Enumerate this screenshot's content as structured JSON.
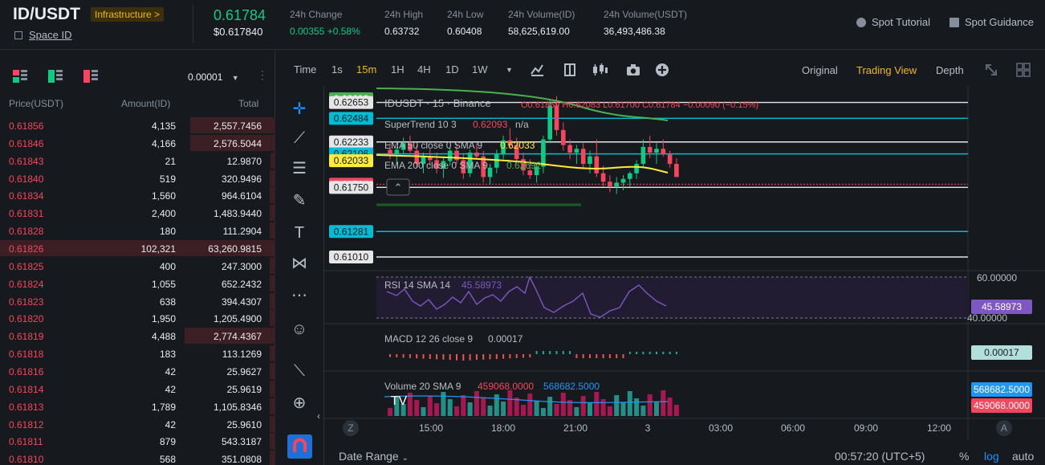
{
  "header": {
    "symbol": "ID/USDT",
    "tag": "Infrastructure >",
    "project_link": "Space ID",
    "last_price": "0.61784",
    "last_price_usd": "$0.617840",
    "stats": [
      {
        "label": "24h Change",
        "value": "0.00355 +0.58%",
        "green": true
      },
      {
        "label": "24h High",
        "value": "0.63732"
      },
      {
        "label": "24h Low",
        "value": "0.60408"
      },
      {
        "label": "24h Volume(ID)",
        "value": "58,625,619.00"
      },
      {
        "label": "24h Volume(USDT)",
        "value": "36,493,486.38"
      }
    ],
    "links": {
      "tutorial": "Spot Tutorial",
      "guidance": "Spot Guidance"
    }
  },
  "orderbook": {
    "precision": "0.00001",
    "cols": {
      "price": "Price(USDT)",
      "amount": "Amount(ID)",
      "total": "Total"
    },
    "rows": [
      {
        "price": "0.61856",
        "amount": "4,135",
        "total": "2,557.7456",
        "depth": 0.31
      },
      {
        "price": "0.61846",
        "amount": "4,166",
        "total": "2,576.5044",
        "depth": 0.31
      },
      {
        "price": "0.61843",
        "amount": "21",
        "total": "12.9870",
        "depth": 0.0
      },
      {
        "price": "0.61840",
        "amount": "519",
        "total": "320.9496",
        "depth": 0.02
      },
      {
        "price": "0.61834",
        "amount": "1,560",
        "total": "964.6104",
        "depth": 0.02
      },
      {
        "price": "0.61831",
        "amount": "2,400",
        "total": "1,483.9440",
        "depth": 0.02
      },
      {
        "price": "0.61828",
        "amount": "180",
        "total": "111.2904",
        "depth": 0.02
      },
      {
        "price": "0.61826",
        "amount": "102,321",
        "total": "63,260.9815",
        "depth": 1.0
      },
      {
        "price": "0.61825",
        "amount": "400",
        "total": "247.3000",
        "depth": 0.02
      },
      {
        "price": "0.61824",
        "amount": "1,055",
        "total": "652.2432",
        "depth": 0.02
      },
      {
        "price": "0.61823",
        "amount": "638",
        "total": "394.4307",
        "depth": 0.02
      },
      {
        "price": "0.61820",
        "amount": "1,950",
        "total": "1,205.4900",
        "depth": 0.02
      },
      {
        "price": "0.61819",
        "amount": "4,488",
        "total": "2,774.4367",
        "depth": 0.33
      },
      {
        "price": "0.61818",
        "amount": "183",
        "total": "113.1269",
        "depth": 0.02
      },
      {
        "price": "0.61816",
        "amount": "42",
        "total": "25.9627",
        "depth": 0.02
      },
      {
        "price": "0.61814",
        "amount": "42",
        "total": "25.9619",
        "depth": 0.02
      },
      {
        "price": "0.61813",
        "amount": "1,789",
        "total": "1,105.8346",
        "depth": 0.02
      },
      {
        "price": "0.61812",
        "amount": "42",
        "total": "25.9610",
        "depth": 0.02
      },
      {
        "price": "0.61811",
        "amount": "879",
        "total": "543.3187",
        "depth": 0.02
      },
      {
        "price": "0.61810",
        "amount": "568",
        "total": "351.0808",
        "depth": 0.02
      }
    ]
  },
  "chart_toolbar": {
    "intervals": [
      "Time",
      "1s",
      "15m",
      "1H",
      "4H",
      "1D",
      "1W"
    ],
    "active_interval": "15m",
    "views": [
      "Original",
      "Trading View",
      "Depth"
    ],
    "active_view": "Trading View"
  },
  "chart": {
    "legend": {
      "title": "IDUSDT · 15 · Binance",
      "ohlc": "O0.61859 H0.62083 L0.61700 C0.61784 −0.00090 (−0.15%)",
      "supertrend": "SuperTrend 10 3",
      "supertrend_val": "0.62093",
      "supertrend_na": "n/a",
      "ema50": "EMA 50 close 0 SMA 9",
      "ema50_val": "0.62033",
      "ema200": "EMA 200 close 0 SMA 9",
      "ema200_val": "0.62692"
    },
    "price_labels": [
      {
        "v": "0.62692",
        "bg": "#4caf50",
        "fg": "#ffffff"
      },
      {
        "v": "0.62653",
        "bg": "#e6e6e6",
        "fg": "#161a1e"
      },
      {
        "v": "0.62484",
        "bg": "#00bcd4",
        "fg": "#161a1e"
      },
      {
        "v": "0.62233",
        "bg": "#e6e6e6",
        "fg": "#161a1e"
      },
      {
        "v": "0.62106",
        "bg": "#00bcd4",
        "fg": "#161a1e"
      },
      {
        "v": "0.62033",
        "bg": "#ffeb3b",
        "fg": "#161a1e"
      },
      {
        "v": "0.61784",
        "bg": "#f6465d",
        "fg": "#ffffff"
      },
      {
        "v": "0.61750",
        "bg": "#e6e6e6",
        "fg": "#161a1e"
      },
      {
        "v": "0.61281",
        "bg": "#00bcd4",
        "fg": "#161a1e"
      },
      {
        "v": "0.61010",
        "bg": "#e6e6e6",
        "fg": "#161a1e"
      }
    ],
    "rsi": {
      "label": "RSI 14 SMA 14",
      "value": "45.58973",
      "top": "60.00000",
      "bottom": "40.00000"
    },
    "macd": {
      "label": "MACD 12 26 close 9",
      "value": "0.00017"
    },
    "volume": {
      "label": "Volume 20 SMA 9",
      "v1": "459068.0000",
      "v2": "568682.5000"
    },
    "time_labels": [
      "15:00",
      "18:00",
      "21:00",
      "3",
      "03:00",
      "06:00",
      "09:00",
      "12:00"
    ],
    "z_label": "Z",
    "a_label": "A",
    "date_range": "Date Range",
    "clock": "00:57:20 (UTC+5)",
    "pct": "%",
    "log": "log",
    "auto": "auto"
  }
}
